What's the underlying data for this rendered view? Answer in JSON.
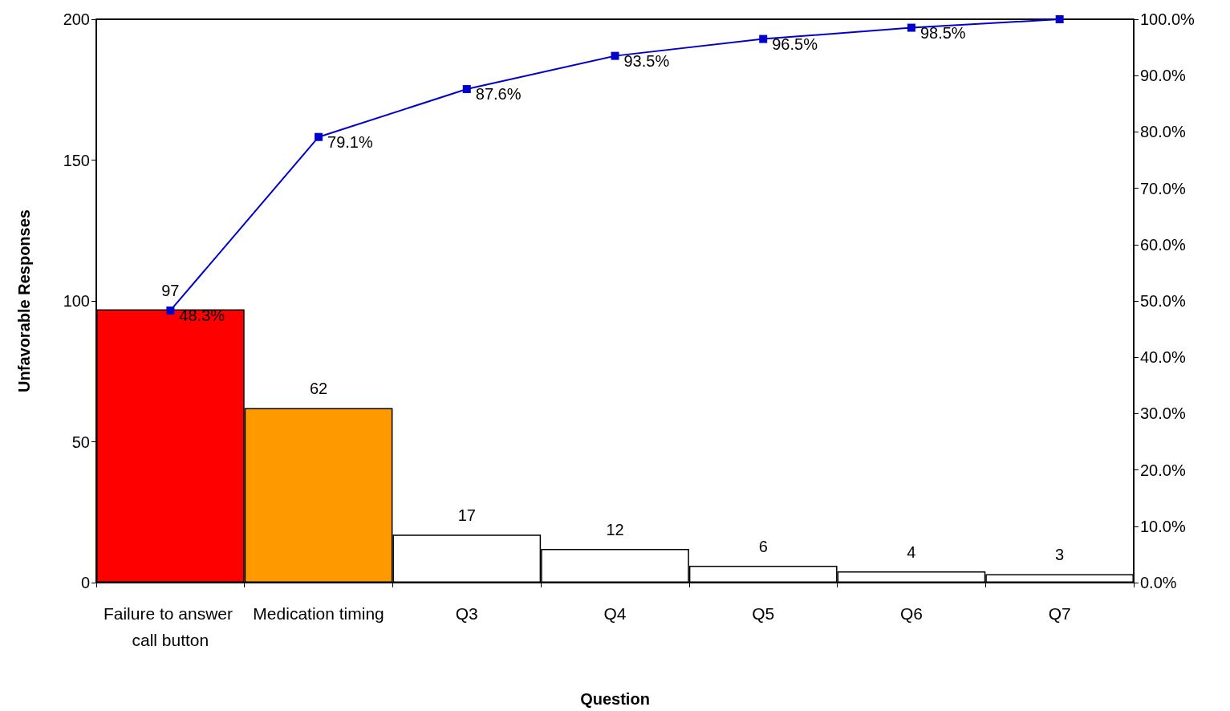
{
  "chart_data": {
    "type": "bar",
    "xlabel": "Question",
    "ylabel": "Unfavorable Responses",
    "categories": [
      "Failure to answer call button",
      "Medication timing",
      "Q3",
      "Q4",
      "Q5",
      "Q6",
      "Q7"
    ],
    "series": [
      {
        "colors": [
          "#ff0000",
          "#ff9900",
          "#ffffff",
          "#ffffff",
          "#ffffff",
          "#ffffff",
          "#ffffff"
        ],
        "values": [
          97,
          62,
          17,
          12,
          6,
          4,
          3
        ],
        "data_labels": true
      },
      {
        "type": "line",
        "axis": "y2",
        "color": "#0000cc",
        "marker": "square",
        "values": [
          48.3,
          79.1,
          87.6,
          93.5,
          96.5,
          98.5,
          100
        ],
        "value_labels": [
          "48.3%",
          "79.1%",
          "87.6%",
          "93.5%",
          "96.5%",
          "98.5%",
          null
        ]
      }
    ],
    "ylim": [
      0,
      200
    ],
    "yticks": [
      0,
      50,
      100,
      150,
      200
    ],
    "y2lim": [
      0,
      100
    ],
    "y2ticks": [
      {
        "value": 0,
        "label": "0.0%"
      },
      {
        "value": 10,
        "label": "10.0%"
      },
      {
        "value": 20,
        "label": "20.0%"
      },
      {
        "value": 30,
        "label": "30.0%"
      },
      {
        "value": 40,
        "label": "40.0%"
      },
      {
        "value": 50,
        "label": "50.0%"
      },
      {
        "value": 60,
        "label": "60.0%"
      },
      {
        "value": 70,
        "label": "70.0%"
      },
      {
        "value": 80,
        "label": "80.0%"
      },
      {
        "value": 90,
        "label": "90.0%"
      },
      {
        "value": 100,
        "label": "100.0%"
      }
    ],
    "grid": false
  }
}
